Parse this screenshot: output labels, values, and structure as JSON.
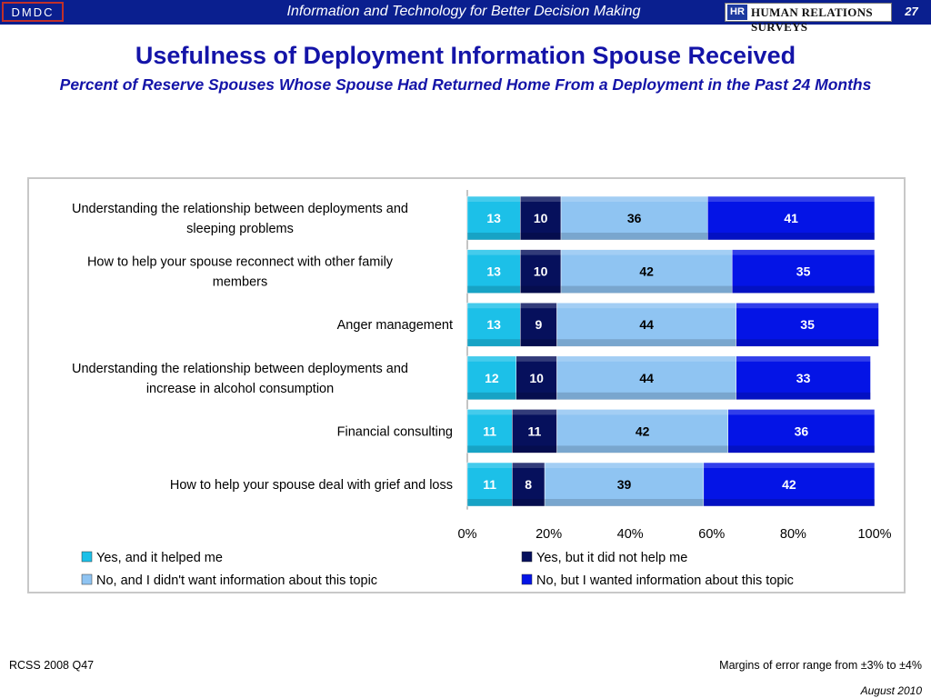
{
  "header": {
    "badge": "DMDC",
    "tagline": "Information and Technology for Better Decision Making",
    "logo_text": "HUMAN RELATIONS SURVEYS",
    "logo_mark": "HR",
    "page_number": "27"
  },
  "colors": {
    "header_bg": "#0a1f8f",
    "title": "#1414a8",
    "seg1": "#1cc0e8",
    "seg2": "#06105c",
    "seg3": "#8fc4f2",
    "seg4": "#0414e6"
  },
  "chart_data": {
    "type": "bar",
    "orientation": "horizontal",
    "stacked": true,
    "title": "Usefulness of Deployment Information Spouse Received",
    "subtitle": "Percent of Reserve Spouses Whose Spouse Had Returned Home From a Deployment in the Past 24 Months",
    "categories": [
      "Understanding the relationship between deployments and sleeping problems",
      "How to help your spouse reconnect with other family members",
      "Anger management",
      "Understanding the relationship between deployments and increase in alcohol consumption",
      "Financial consulting",
      "How to help your spouse deal with grief and loss"
    ],
    "series": [
      {
        "name": "Yes, and it helped me",
        "values": [
          13,
          13,
          13,
          12,
          11,
          11
        ]
      },
      {
        "name": "Yes, but it did not help me",
        "values": [
          10,
          10,
          9,
          10,
          11,
          8
        ]
      },
      {
        "name": "No, and I didn't want information about this topic",
        "values": [
          36,
          42,
          44,
          44,
          42,
          39
        ]
      },
      {
        "name": "No, but I wanted information about this topic",
        "values": [
          41,
          35,
          35,
          33,
          36,
          42
        ]
      }
    ],
    "xlim": [
      0,
      100
    ],
    "xticks": [
      "0%",
      "20%",
      "40%",
      "60%",
      "80%",
      "100%"
    ],
    "grid": false,
    "legend_position": "bottom"
  },
  "footer": {
    "source": "RCSS 2008 Q47",
    "margin_note": "Margins of error range from ±3% to ±4%",
    "date": "August 2010"
  }
}
